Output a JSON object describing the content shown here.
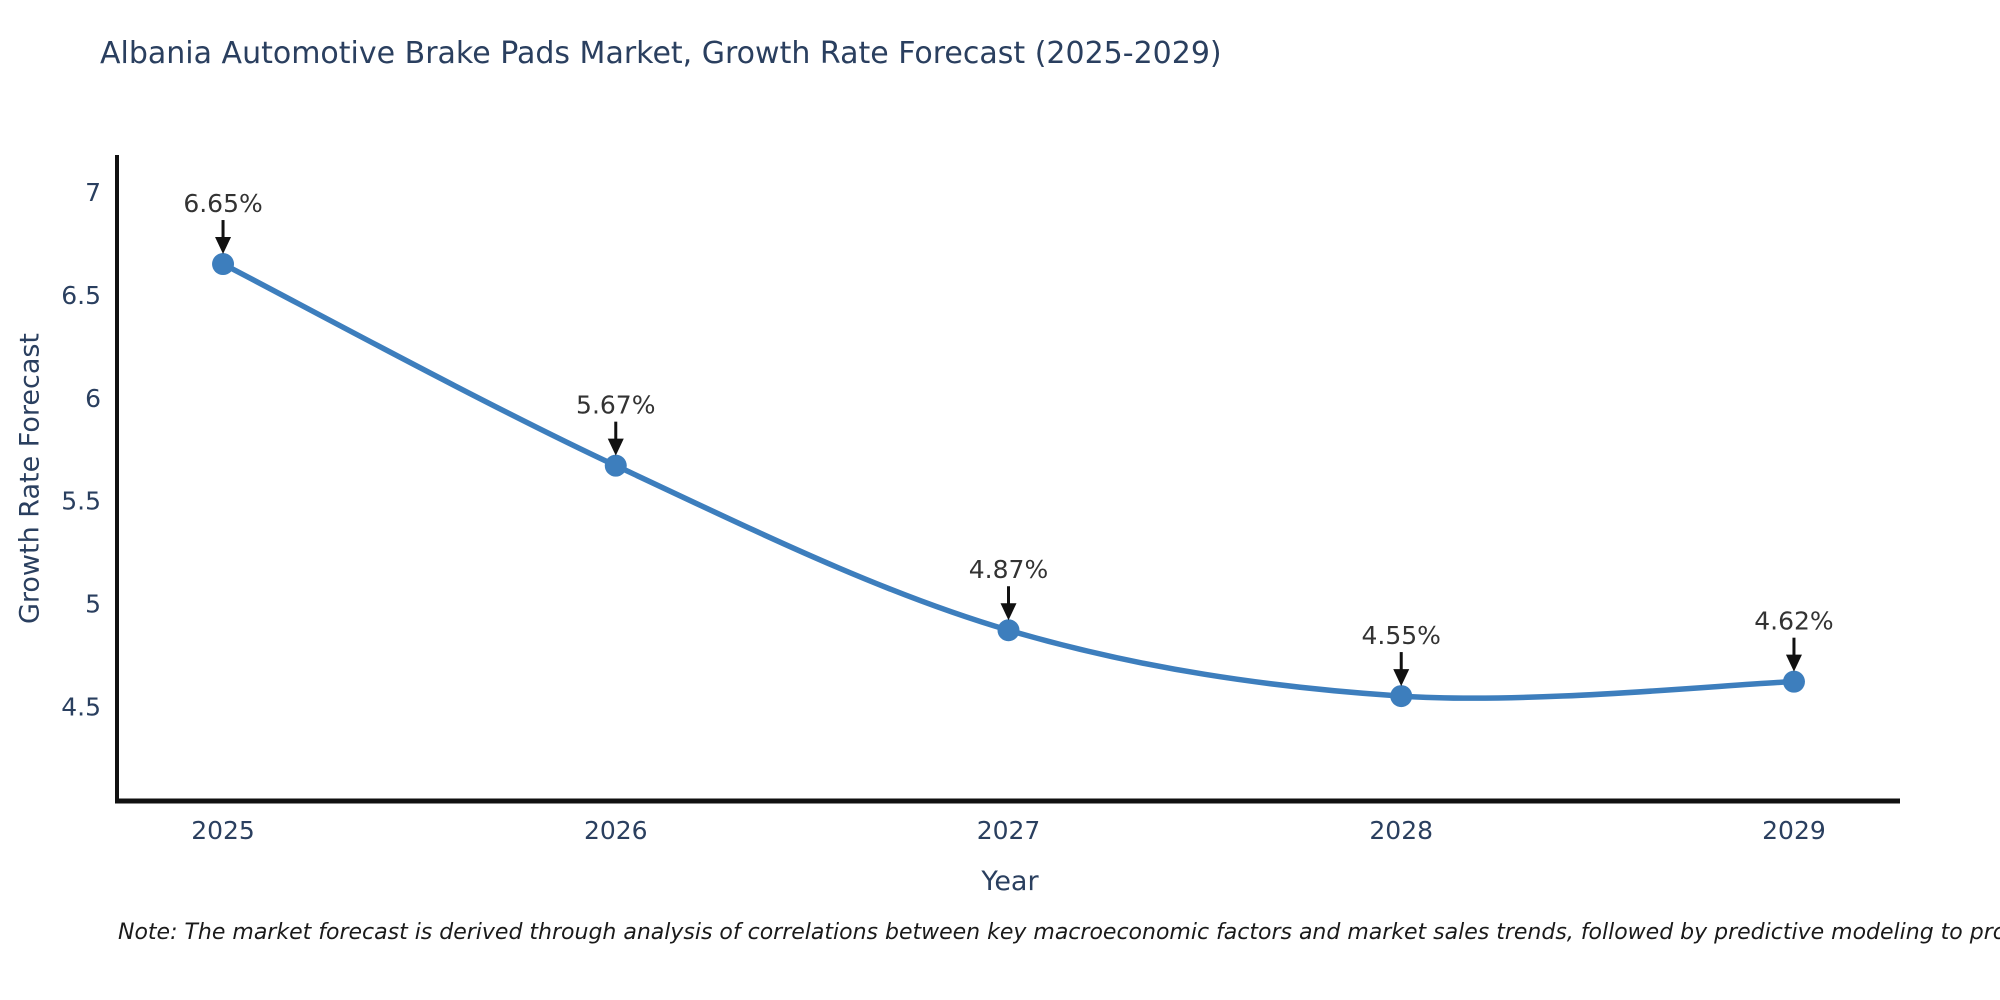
{
  "title": "Albania Automotive Brake Pads Market, Growth Rate Forecast (2025-2029)",
  "note": "Note: The market forecast is derived through analysis of correlations between key macroeconomic factors and market sales trends, followed by predictive modeling to project future sales",
  "chart_data": {
    "type": "line",
    "title": "Albania Automotive Brake Pads Market, Growth Rate Forecast (2025-2029)",
    "xlabel": "Year",
    "ylabel": "Growth Rate Forecast",
    "x": [
      2025,
      2026,
      2027,
      2028,
      2029
    ],
    "series": [
      {
        "name": "Growth Rate Forecast",
        "values": [
          6.65,
          5.67,
          4.87,
          4.55,
          4.62
        ]
      }
    ],
    "annotations": [
      "6.65%",
      "5.67%",
      "4.87%",
      "4.55%",
      "4.62%"
    ],
    "xticks": [
      "2025",
      "2026",
      "2027",
      "2028",
      "2029"
    ],
    "yticks": [
      4.5,
      5,
      5.5,
      6,
      6.5,
      7
    ],
    "xlim": [
      2024.73,
      2029.27
    ],
    "ylim": [
      4.04,
      7.18
    ],
    "line_shape": "spline",
    "grid": false,
    "legend_visible": false,
    "colors": {
      "line": "#3d7ebd",
      "marker": "#3d7ebd",
      "arrow": "#111111",
      "axis_line": "#111111",
      "tick_text": "#2a3f5f",
      "annotation_text": "#333333",
      "title_text": "#2a3f5f",
      "background": "#ffffff"
    }
  }
}
